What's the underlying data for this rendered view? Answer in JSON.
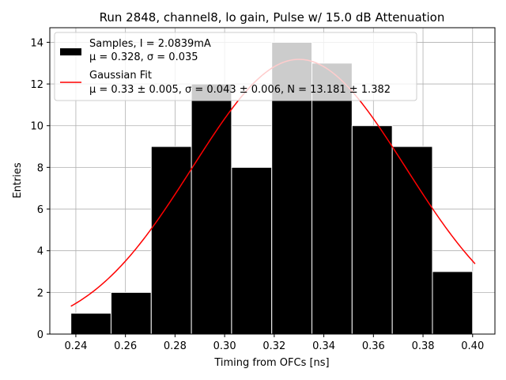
{
  "chart_data": {
    "type": "bar",
    "title": "Run 2848, channel8, lo gain, Pulse w/ 15.0 dB Attenuation",
    "xlabel": "Timing from OFCs [ns]",
    "ylabel": "Entries",
    "xlim": [
      0.2295,
      0.409
    ],
    "ylim": [
      0,
      14.7
    ],
    "xticks": [
      0.24,
      0.26,
      0.28,
      0.3,
      0.32,
      0.34,
      0.36,
      0.38,
      0.4
    ],
    "xtick_labels": [
      "0.24",
      "0.26",
      "0.28",
      "0.30",
      "0.32",
      "0.34",
      "0.36",
      "0.38",
      "0.40"
    ],
    "yticks": [
      0,
      2,
      4,
      6,
      8,
      10,
      12,
      14
    ],
    "ytick_labels": [
      "0",
      "2",
      "4",
      "6",
      "8",
      "10",
      "12",
      "14"
    ],
    "grid": true,
    "legend_position": "top-left",
    "bins": {
      "edges": [
        0.238,
        0.2542,
        0.2704,
        0.2866,
        0.3028,
        0.319,
        0.3352,
        0.3514,
        0.3676,
        0.3838,
        0.4
      ],
      "counts": [
        1,
        2,
        9,
        12,
        8,
        14,
        13,
        10,
        9,
        3
      ],
      "color": "#000000",
      "edge_color": "#ffffff"
    },
    "fit": {
      "mu": 0.33,
      "sigma": 0.043,
      "N": 13.181,
      "x_range": [
        0.238,
        0.401
      ],
      "color": "#ff0000"
    },
    "legend": {
      "samples_line1": "Samples, I = 2.0839mA",
      "samples_line2": "μ = 0.328, σ = 0.035",
      "fit_line1": "Gaussian Fit",
      "fit_line2": "μ = 0.33 ± 0.005, σ = 0.043 ± 0.006, N = 13.181 ± 1.382"
    }
  }
}
